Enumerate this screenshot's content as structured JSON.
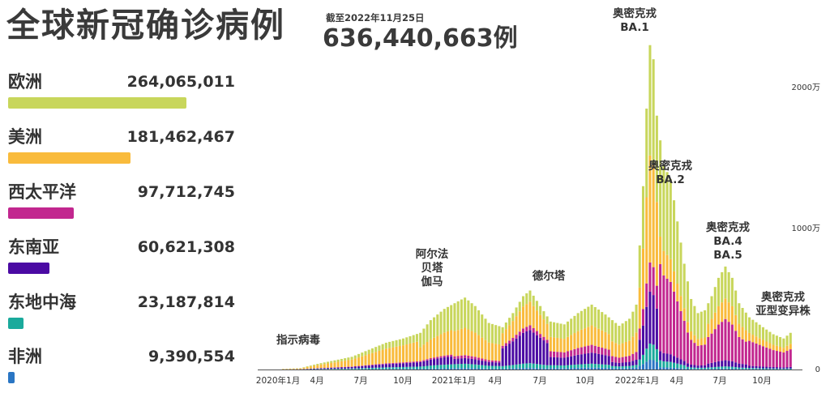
{
  "header": {
    "title": "全球新冠确诊病例",
    "as_of": "截至2022年11月25日",
    "total": "636,440,663例"
  },
  "regions": [
    {
      "name": "欧洲",
      "cases": "264,065,011",
      "value": 264065011,
      "color": "#c8d65b"
    },
    {
      "name": "美洲",
      "cases": "181,462,467",
      "value": 181462467,
      "color": "#f9bb3c"
    },
    {
      "name": "西太平洋",
      "cases": "97,712,745",
      "value": 97712745,
      "color": "#c2278f"
    },
    {
      "name": "东南亚",
      "cases": "60,621,308",
      "value": 60621308,
      "color": "#4b0aa3"
    },
    {
      "name": "东地中海",
      "cases": "23,187,814",
      "value": 23187814,
      "color": "#1aaa9c"
    },
    {
      "name": "非洲",
      "cases": "9,390,554",
      "value": 9390554,
      "color": "#2a76c4"
    }
  ],
  "chart_data": {
    "type": "bar",
    "stacked": true,
    "interval": "weekly",
    "x_start": "2020-01",
    "x_tick_labels": [
      "2020年1月",
      "4月",
      "7月",
      "10月",
      "2021年1月",
      "4月",
      "7月",
      "10月",
      "2022年1月",
      "4月",
      "7月",
      "10月"
    ],
    "y_tick_labels": [
      "0",
      "1000万",
      "2000万"
    ],
    "ylim": [
      0,
      23500000
    ],
    "series_order": [
      "非洲",
      "东地中海",
      "东南亚",
      "西太平洋",
      "美洲",
      "欧洲"
    ],
    "weekly_total_profile_millions": [
      [
        0,
        0.05
      ],
      [
        5,
        0.1
      ],
      [
        10,
        0.4
      ],
      [
        14,
        0.6
      ],
      [
        20,
        0.9
      ],
      [
        25,
        1.4
      ],
      [
        30,
        1.9
      ],
      [
        35,
        2.2
      ],
      [
        40,
        2.6
      ],
      [
        43,
        3.5
      ],
      [
        47,
        4.3
      ],
      [
        50,
        4.7
      ],
      [
        53,
        5.1
      ],
      [
        56,
        4.5
      ],
      [
        60,
        3.3
      ],
      [
        64,
        3.0
      ],
      [
        67,
        4.0
      ],
      [
        70,
        5.2
      ],
      [
        72,
        5.6
      ],
      [
        75,
        4.5
      ],
      [
        78,
        3.4
      ],
      [
        82,
        3.2
      ],
      [
        86,
        4.0
      ],
      [
        90,
        4.6
      ],
      [
        94,
        3.9
      ],
      [
        98,
        3.1
      ],
      [
        101,
        3.6
      ],
      [
        103,
        4.6
      ],
      [
        105,
        13.0
      ],
      [
        106,
        18.5
      ],
      [
        107,
        23.0
      ],
      [
        108,
        22.0
      ],
      [
        109,
        18.0
      ],
      [
        111,
        14.5
      ],
      [
        113,
        13.5
      ],
      [
        115,
        10.5
      ],
      [
        117,
        7.5
      ],
      [
        119,
        5.0
      ],
      [
        121,
        4.0
      ],
      [
        123,
        4.2
      ],
      [
        125,
        5.2
      ],
      [
        127,
        6.5
      ],
      [
        129,
        7.3
      ],
      [
        131,
        6.5
      ],
      [
        133,
        4.7
      ],
      [
        136,
        3.7
      ],
      [
        140,
        3.0
      ],
      [
        143,
        2.5
      ],
      [
        146,
        2.2
      ],
      [
        148,
        2.6
      ]
    ],
    "annotations": [
      {
        "lines": [
          "指示病毒"
        ]
      },
      {
        "lines": [
          "阿尔法",
          "贝塔",
          "伽马"
        ]
      },
      {
        "lines": [
          "德尔塔"
        ]
      },
      {
        "lines": [
          "奥密克戎",
          "BA.1"
        ]
      },
      {
        "lines": [
          "奥密克戎",
          "BA.2"
        ]
      },
      {
        "lines": [
          "奥密克戎",
          "BA.4",
          "BA.5"
        ]
      },
      {
        "lines": [
          "奥密克戎",
          "亚型变异株"
        ]
      }
    ]
  }
}
